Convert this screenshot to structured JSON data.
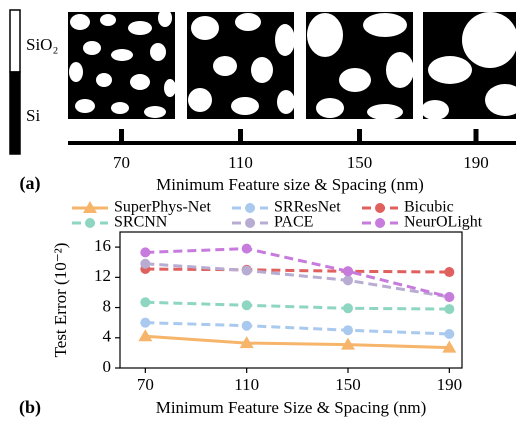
{
  "panel_a": {
    "label": "(a)",
    "colorbar_labels": [
      "SiO₂",
      "Si"
    ],
    "categories": [
      "70",
      "110",
      "150",
      "190"
    ],
    "xlabel": "Minimum Feature size & Spacing (nm)"
  },
  "chart_data": {
    "type": "line",
    "panel_label": "(b)",
    "xlabel": "Minimum Feature Size & Spacing (nm)",
    "ylabel": "Test Error (10⁻²)",
    "x": [
      70,
      110,
      150,
      190
    ],
    "xlim": [
      60,
      195
    ],
    "xticks": [
      70,
      110,
      150,
      190
    ],
    "ylim": [
      0,
      18
    ],
    "yticks": [
      0,
      4,
      8,
      12,
      16
    ],
    "series": [
      {
        "name": "SuperPhys-Net",
        "color": "#f6b56b",
        "marker": "triangle",
        "dashed": false,
        "values": [
          4.2,
          3.3,
          3.1,
          2.7
        ]
      },
      {
        "name": "SRResNet",
        "color": "#a9c9ee",
        "marker": "circle",
        "dashed": true,
        "values": [
          6.0,
          5.6,
          5.0,
          4.5
        ]
      },
      {
        "name": "Bicubic",
        "color": "#e0605e",
        "marker": "circle",
        "dashed": true,
        "values": [
          13.1,
          13.0,
          12.8,
          12.7
        ]
      },
      {
        "name": "SRCNN",
        "color": "#8ed6c1",
        "marker": "circle",
        "dashed": true,
        "values": [
          8.7,
          8.3,
          7.9,
          7.8
        ]
      },
      {
        "name": "PACE",
        "color": "#b8acd3",
        "marker": "circle",
        "dashed": true,
        "values": [
          13.8,
          12.9,
          11.6,
          9.4
        ]
      },
      {
        "name": "NeurOLight",
        "color": "#c77bdc",
        "marker": "circle",
        "dashed": true,
        "values": [
          15.3,
          15.8,
          12.8,
          9.4
        ]
      }
    ]
  }
}
